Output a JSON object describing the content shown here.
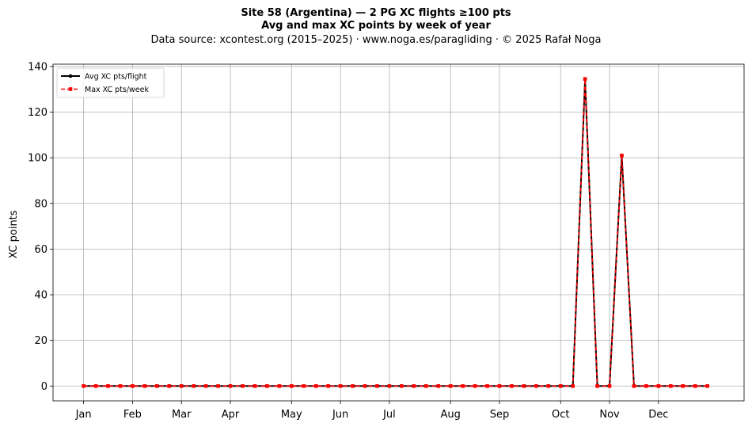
{
  "chart_data": {
    "type": "line",
    "title": "Site 58 (Argentina)  —  2 PG XC flights ≥100 pts",
    "subtitle": "Avg and max XC points by week of year",
    "source_line": "Data source: xcontest.org (2015–2025)  ·  www.noga.es/paragliding  ·  © 2025 Rafał Noga",
    "xlabel": "",
    "ylabel": "XC points",
    "ylim": [
      -6.5,
      141
    ],
    "xlim": [
      -2.5,
      54
    ],
    "yticks": [
      0,
      20,
      40,
      60,
      80,
      100,
      120,
      140
    ],
    "month_ticks": [
      {
        "label": "Jan",
        "week": 0
      },
      {
        "label": "Feb",
        "week": 4
      },
      {
        "label": "Mar",
        "week": 8
      },
      {
        "label": "Apr",
        "week": 12
      },
      {
        "label": "May",
        "week": 17
      },
      {
        "label": "Jun",
        "week": 21
      },
      {
        "label": "Jul",
        "week": 25
      },
      {
        "label": "Aug",
        "week": 30
      },
      {
        "label": "Sep",
        "week": 34
      },
      {
        "label": "Oct",
        "week": 39
      },
      {
        "label": "Nov",
        "week": 43
      },
      {
        "label": "Dec",
        "week": 47
      }
    ],
    "grid": true,
    "legend_position": "top-left",
    "x": [
      0,
      1,
      2,
      3,
      4,
      5,
      6,
      7,
      8,
      9,
      10,
      11,
      12,
      13,
      14,
      15,
      16,
      17,
      18,
      19,
      20,
      21,
      22,
      23,
      24,
      25,
      26,
      27,
      28,
      29,
      30,
      31,
      32,
      33,
      34,
      35,
      36,
      37,
      38,
      39,
      40,
      41,
      42,
      43,
      44,
      45,
      46,
      47,
      48,
      49,
      50,
      51
    ],
    "series": [
      {
        "name": "Avg XC pts/flight",
        "color": "#000000",
        "style": "solid",
        "marker": "circle",
        "values": [
          0,
          0,
          0,
          0,
          0,
          0,
          0,
          0,
          0,
          0,
          0,
          0,
          0,
          0,
          0,
          0,
          0,
          0,
          0,
          0,
          0,
          0,
          0,
          0,
          0,
          0,
          0,
          0,
          0,
          0,
          0,
          0,
          0,
          0,
          0,
          0,
          0,
          0,
          0,
          0,
          0,
          134.5,
          0,
          0,
          101,
          0,
          0,
          0,
          0,
          0,
          0,
          0
        ]
      },
      {
        "name": "Max XC pts/week",
        "color": "#ff0000",
        "style": "dashed",
        "marker": "square",
        "values": [
          0,
          0,
          0,
          0,
          0,
          0,
          0,
          0,
          0,
          0,
          0,
          0,
          0,
          0,
          0,
          0,
          0,
          0,
          0,
          0,
          0,
          0,
          0,
          0,
          0,
          0,
          0,
          0,
          0,
          0,
          0,
          0,
          0,
          0,
          0,
          0,
          0,
          0,
          0,
          0,
          0,
          134.5,
          0,
          0,
          101,
          0,
          0,
          0,
          0,
          0,
          0,
          0
        ]
      }
    ]
  }
}
